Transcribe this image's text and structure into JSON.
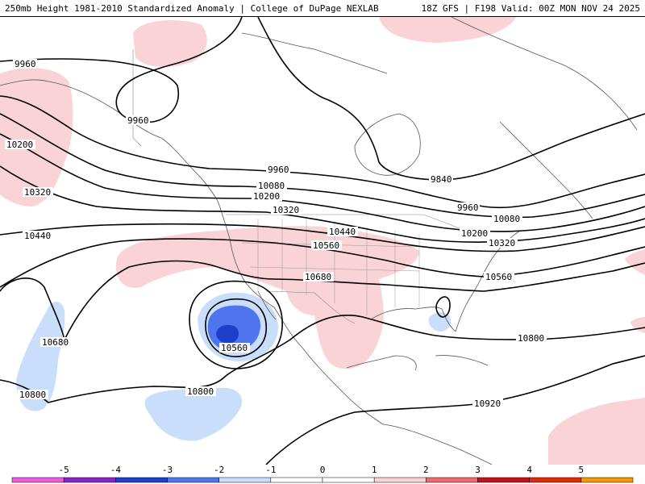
{
  "header": {
    "left": "250mb Height 1981-2010 Standardized Anomaly | College of DuPage NEXLAB",
    "right": "18Z GFS | F198 Valid: 00Z MON NOV 24 2025"
  },
  "colors": {
    "neg5": "#ee5ce6",
    "neg4": "#8b22c9",
    "neg3": "#1e3fc9",
    "neg2": "#4e74ee",
    "neg1": "#c9defa",
    "zero": "#ffffff",
    "pos1": "#f9d3d5",
    "pos2": "#ee6a6e",
    "pos3": "#c5121a",
    "pos4": "#e02c08",
    "pos5": "#f29a06"
  },
  "contour_labels": {
    "c9960a": "9960",
    "c9960b": "9960",
    "c9960c": "9960",
    "c9960d": "9960",
    "c9840": "9840",
    "c10200a": "10200",
    "c10200b": "10200",
    "c10200c": "10200",
    "c10320a": "10320",
    "c10320b": "10320",
    "c10320c": "10320",
    "c10080a": "10080",
    "c10080b": "10080",
    "c10440a": "10440",
    "c10440b": "10440",
    "c10560a": "10560",
    "c10560b": "10560",
    "c10560c": "10560",
    "c10680a": "10680",
    "c10680b": "10680",
    "c10800a": "10800",
    "c10800b": "10800",
    "c10800c": "10800",
    "c10920": "10920"
  },
  "colorbar": {
    "ticks": [
      "-5",
      "-4",
      "-3",
      "-2",
      "-1",
      "0",
      "1",
      "2",
      "3",
      "4",
      "5"
    ]
  }
}
